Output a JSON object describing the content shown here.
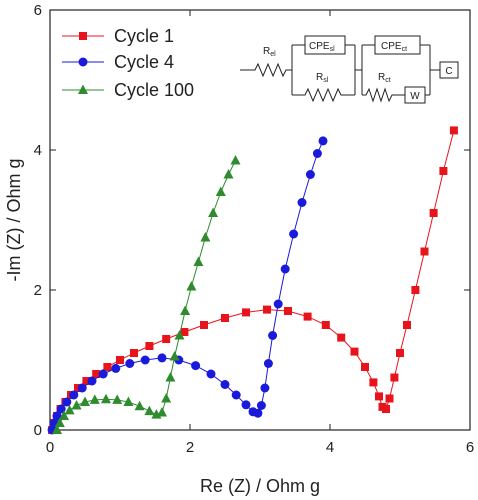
{
  "chart_data": {
    "type": "scatter",
    "xlabel": "Re (Z) / Ohm g",
    "ylabel": "-Im (Z) / Ohm g",
    "xlim": [
      0,
      6
    ],
    "ylim": [
      0,
      6
    ],
    "xticks": [
      0,
      2,
      4,
      6
    ],
    "yticks": [
      0,
      2,
      4,
      6
    ],
    "legend": "upper left",
    "circuit": [
      {
        "label": "R",
        "sub": "el"
      },
      {
        "label": "CPE",
        "sub": "sl"
      },
      {
        "label": "R",
        "sub": "sl"
      },
      {
        "label": "CPE",
        "sub": "ct"
      },
      {
        "label": "R",
        "sub": "ct"
      },
      {
        "label": "W"
      },
      {
        "label": "C"
      }
    ],
    "series": [
      {
        "name": "Cycle 1",
        "color": "#e8141c",
        "marker": "square",
        "x": [
          0.03,
          0.06,
          0.1,
          0.15,
          0.22,
          0.3,
          0.4,
          0.52,
          0.66,
          0.82,
          1.0,
          1.2,
          1.42,
          1.66,
          1.92,
          2.2,
          2.5,
          2.8,
          3.1,
          3.4,
          3.68,
          3.94,
          4.16,
          4.35,
          4.5,
          4.62,
          4.7,
          4.75,
          4.8,
          4.85,
          4.92,
          5.0,
          5.1,
          5.22,
          5.35,
          5.48,
          5.62,
          5.77
        ],
        "values": [
          0,
          0.1,
          0.2,
          0.3,
          0.4,
          0.5,
          0.6,
          0.7,
          0.8,
          0.9,
          1.0,
          1.1,
          1.2,
          1.3,
          1.4,
          1.5,
          1.6,
          1.68,
          1.72,
          1.7,
          1.62,
          1.5,
          1.32,
          1.12,
          0.9,
          0.68,
          0.48,
          0.33,
          0.3,
          0.45,
          0.75,
          1.1,
          1.5,
          2.0,
          2.55,
          3.1,
          3.7,
          4.28
        ]
      },
      {
        "name": "Cycle 4",
        "color": "#1a1adb",
        "marker": "circle",
        "x": [
          0.03,
          0.06,
          0.1,
          0.16,
          0.24,
          0.34,
          0.46,
          0.6,
          0.76,
          0.94,
          1.14,
          1.36,
          1.6,
          1.84,
          2.08,
          2.3,
          2.5,
          2.66,
          2.8,
          2.9,
          2.97,
          3.02,
          3.07,
          3.12,
          3.18,
          3.26,
          3.36,
          3.48,
          3.6,
          3.72,
          3.82,
          3.9
        ],
        "values": [
          0,
          0.1,
          0.2,
          0.3,
          0.4,
          0.5,
          0.6,
          0.7,
          0.8,
          0.88,
          0.95,
          1.0,
          1.03,
          1.0,
          0.92,
          0.8,
          0.65,
          0.5,
          0.36,
          0.26,
          0.24,
          0.35,
          0.6,
          0.95,
          1.35,
          1.8,
          2.3,
          2.8,
          3.25,
          3.65,
          3.95,
          4.13
        ]
      },
      {
        "name": "Cycle 100",
        "color": "#2e8b2e",
        "marker": "triangle",
        "x": [
          0.1,
          0.14,
          0.2,
          0.28,
          0.38,
          0.5,
          0.64,
          0.8,
          0.96,
          1.12,
          1.28,
          1.42,
          1.52,
          1.6,
          1.66,
          1.72,
          1.78,
          1.85,
          1.93,
          2.02,
          2.12,
          2.22,
          2.33,
          2.44,
          2.55,
          2.65
        ],
        "values": [
          0,
          0.1,
          0.2,
          0.28,
          0.35,
          0.4,
          0.43,
          0.44,
          0.43,
          0.4,
          0.34,
          0.27,
          0.22,
          0.25,
          0.45,
          0.75,
          1.05,
          1.35,
          1.7,
          2.05,
          2.4,
          2.75,
          3.1,
          3.4,
          3.65,
          3.85
        ]
      }
    ]
  }
}
